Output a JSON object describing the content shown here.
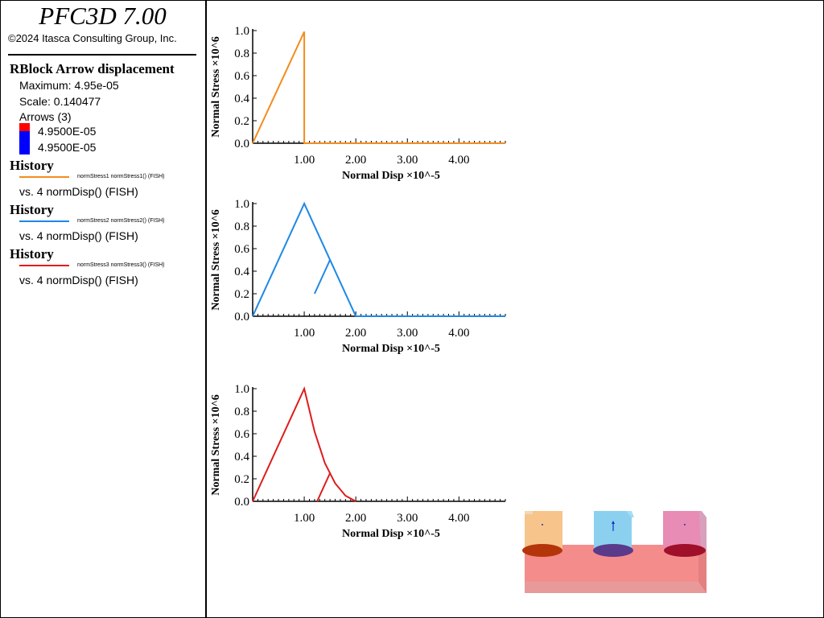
{
  "app": {
    "title": "PFC3D 7.00",
    "copyright": "©2024 Itasca Consulting Group, Inc."
  },
  "legend": {
    "rblock": {
      "heading": "RBlock Arrow displacement",
      "maximum": "Maximum: 4.95e-05",
      "scale": "Scale: 0.140477",
      "arrows_label": "Arrows (3)",
      "entries": [
        "4.9500E-05",
        "4.9500E-05"
      ],
      "colors": [
        "#ff0000",
        "#0000ff"
      ]
    },
    "histories": [
      {
        "heading": "History",
        "series": "normStress1 normStress1() (FISH)",
        "vs": "vs. 4 normDisp() (FISH)",
        "color": "#f28c1e"
      },
      {
        "heading": "History",
        "series": "normStress2 normStress2() (FISH)",
        "vs": "vs. 4 normDisp() (FISH)",
        "color": "#1e88e5"
      },
      {
        "heading": "History",
        "series": "normStress3 normStress3() (FISH)",
        "vs": "vs. 4 normDisp() (FISH)",
        "color": "#e01b1b"
      }
    ]
  },
  "chart_data": [
    {
      "type": "line",
      "xlabel": "Normal Disp ×10^-5",
      "ylabel": "Normal Stress ×10^6",
      "xlim": [
        0,
        4.9
      ],
      "ylim": [
        0,
        1.0
      ],
      "xticks": [
        "1.00",
        "2.00",
        "3.00",
        "4.00"
      ],
      "xtick_values": [
        1,
        2,
        3,
        4
      ],
      "yticks": [
        "0.0",
        "0.2",
        "0.4",
        "0.6",
        "0.8",
        "1.0"
      ],
      "ytick_values": [
        0,
        0.2,
        0.4,
        0.6,
        0.8,
        1.0
      ],
      "series": [
        {
          "color": "#f28c1e",
          "points": [
            [
              0.0,
              0.0
            ],
            [
              1.0,
              0.99
            ],
            [
              1.0,
              0.76
            ],
            [
              1.0,
              0.0
            ],
            [
              4.9,
              0.0
            ]
          ]
        }
      ]
    },
    {
      "type": "line",
      "xlabel": "Normal Disp ×10^-5",
      "ylabel": "Normal Stress ×10^6",
      "xlim": [
        0,
        4.9
      ],
      "ylim": [
        0,
        1.0
      ],
      "xticks": [
        "1.00",
        "2.00",
        "3.00",
        "4.00"
      ],
      "xtick_values": [
        1,
        2,
        3,
        4
      ],
      "yticks": [
        "0.0",
        "0.2",
        "0.4",
        "0.6",
        "0.8",
        "1.0"
      ],
      "ytick_values": [
        0,
        0.2,
        0.4,
        0.6,
        0.8,
        1.0
      ],
      "series": [
        {
          "color": "#1e88e5",
          "points": [
            [
              0.0,
              0.0
            ],
            [
              1.0,
              1.0
            ],
            [
              2.0,
              0.0
            ],
            [
              4.9,
              0.0
            ]
          ]
        },
        {
          "color": "#1e88e5",
          "points": [
            [
              1.2,
              0.2
            ],
            [
              1.5,
              0.5
            ],
            [
              1.48,
              0.48
            ]
          ]
        }
      ]
    },
    {
      "type": "line",
      "xlabel": "Normal Disp ×10^-5",
      "ylabel": "Normal Stress ×10^6",
      "xlim": [
        0,
        4.9
      ],
      "ylim": [
        0,
        1.0
      ],
      "xticks": [
        "1.00",
        "2.00",
        "3.00",
        "4.00"
      ],
      "xtick_values": [
        1,
        2,
        3,
        4
      ],
      "yticks": [
        "0.0",
        "0.2",
        "0.4",
        "0.6",
        "0.8",
        "1.0"
      ],
      "ytick_values": [
        0,
        0.2,
        0.4,
        0.6,
        0.8,
        1.0
      ],
      "series": [
        {
          "color": "#e01b1b",
          "points": [
            [
              0.0,
              0.0
            ],
            [
              1.0,
              1.0
            ],
            [
              1.2,
              0.62
            ],
            [
              1.4,
              0.34
            ],
            [
              1.6,
              0.16
            ],
            [
              1.8,
              0.05
            ],
            [
              2.0,
              0.0
            ]
          ]
        },
        {
          "color": "#e01b1b",
          "points": [
            [
              1.25,
              0.0
            ],
            [
              1.5,
              0.25
            ]
          ]
        }
      ]
    }
  ],
  "scene": {
    "base_color": "#f48c8c",
    "blocks": [
      {
        "top_color": "#f7c48c",
        "disk_color": "#b5350a"
      },
      {
        "top_color": "#8cd0f0",
        "disk_color": "#5a3a8a"
      },
      {
        "top_color": "#e88cb5",
        "disk_color": "#a0102a"
      }
    ]
  }
}
